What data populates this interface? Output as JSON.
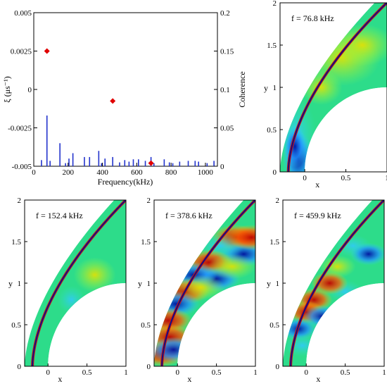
{
  "chart_data": [
    {
      "type": "scatter",
      "xlabel": "Frequency(kHz)",
      "ylabel": "ξ (μs⁻¹)",
      "y2label": "Coherence",
      "xlim": [
        0,
        1070
      ],
      "ylim": [
        -0.005,
        0.005
      ],
      "y2lim": [
        0,
        0.2
      ],
      "xticks": [
        "0",
        "200",
        "400",
        "600",
        "800",
        "1000"
      ],
      "yticks": [
        "-0.005",
        "-0.0025",
        "0",
        "0.0025",
        "0.005"
      ],
      "y2ticks": [
        "0",
        "0.05",
        "0.1",
        "0.15",
        "0.2"
      ],
      "series": [
        {
          "kind": "points",
          "axis": "left",
          "color": "#e00000",
          "marker": "diamond",
          "x": [
            76.8,
            459.9,
            683.0
          ],
          "y": [
            0.0025,
            -0.00075,
            -0.0048
          ]
        },
        {
          "kind": "stems",
          "axis": "right",
          "color": "#2233cc",
          "x": [
            45,
            76.8,
            95,
            152.4,
            185,
            205,
            228,
            295,
            325,
            378.6,
            395,
            415,
            459.9,
            500,
            530,
            555,
            580,
            610,
            650,
            683,
            700,
            760,
            790,
            810,
            850,
            900,
            940,
            960,
            1010,
            1050
          ],
          "y": [
            0.008,
            0.066,
            0.007,
            0.03,
            0.004,
            0.01,
            0.017,
            0.012,
            0.012,
            0.02,
            0.004,
            0.01,
            0.012,
            0.005,
            0.008,
            0.006,
            0.009,
            0.009,
            0.007,
            0.012,
            0.004,
            0.009,
            0.005,
            0.004,
            0.006,
            0.007,
            0.007,
            0.006,
            0.004,
            0.007
          ]
        }
      ]
    },
    {
      "type": "heatmap",
      "annotation": "f = 76.8 kHz",
      "xlabel": "x",
      "ylabel": "y",
      "xlim": [
        -0.3,
        1.0
      ],
      "ylim": [
        0,
        2.0
      ],
      "xticks": [
        "0",
        "0.5",
        "1"
      ],
      "yticks": [
        "0",
        "0.5",
        "1",
        "1.5",
        "2"
      ],
      "pattern": "body-blue"
    },
    {
      "type": "heatmap",
      "annotation": "f = 152.4 kHz",
      "xlabel": "x",
      "ylabel": "y",
      "xlim": [
        -0.3,
        1.0
      ],
      "ylim": [
        0,
        2.0
      ],
      "xticks": [
        "0",
        "0.5",
        "1"
      ],
      "yticks": [
        "0",
        "0.5",
        "1",
        "1.5",
        "2"
      ],
      "pattern": "faint"
    },
    {
      "type": "heatmap",
      "annotation": "f = 378.6 kHz",
      "xlabel": "x",
      "ylabel": "y",
      "xlim": [
        -0.3,
        1.0
      ],
      "ylim": [
        0,
        2.0
      ],
      "xticks": [
        "0",
        "0.5",
        "1"
      ],
      "yticks": [
        "0",
        "0.5",
        "1",
        "1.5",
        "2"
      ],
      "pattern": "strong-bands"
    },
    {
      "type": "heatmap",
      "annotation": "f = 459.9 kHz",
      "xlabel": "x",
      "ylabel": "y",
      "xlim": [
        -0.3,
        1.0
      ],
      "ylim": [
        0,
        2.0
      ],
      "xticks": [
        "0",
        "0.5",
        "1"
      ],
      "yticks": [
        "0",
        "0.5",
        "1",
        "1.5",
        "2"
      ],
      "pattern": "mixed"
    }
  ]
}
